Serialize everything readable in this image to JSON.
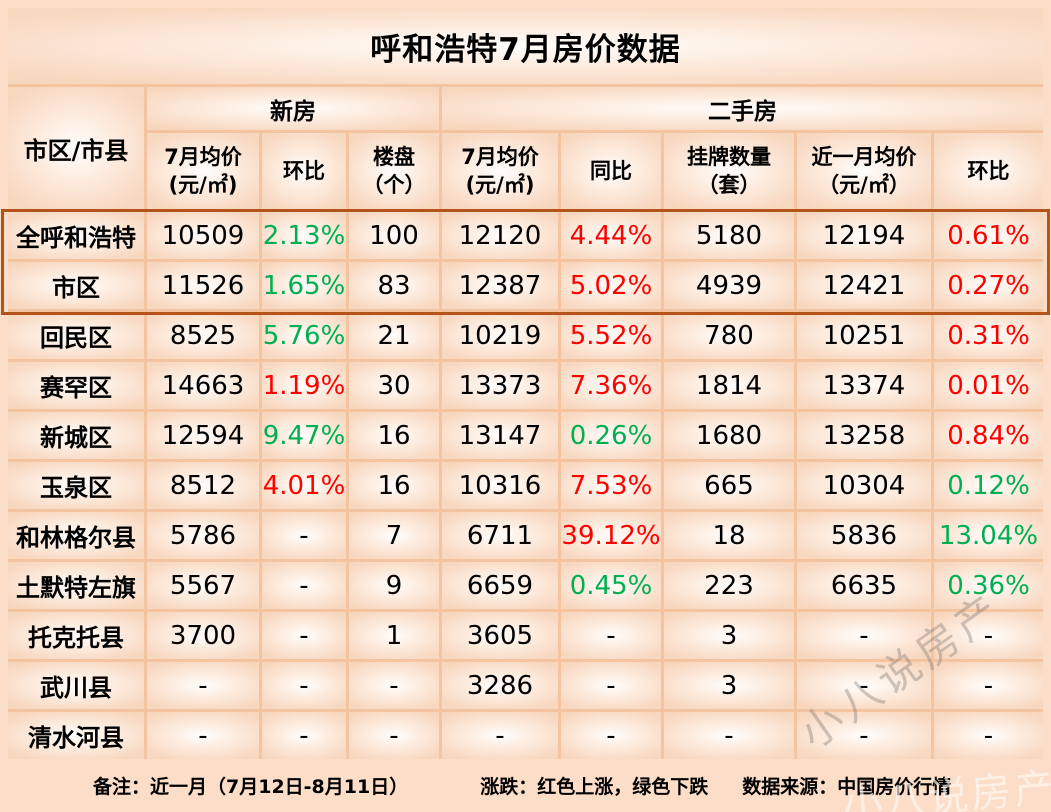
{
  "chart_data": {
    "type": "table",
    "title": "呼和浩特7月房价数据",
    "row_header": "市区/市县",
    "groups": [
      {
        "label": "新房",
        "span": 3
      },
      {
        "label": "二手房",
        "span": 5
      }
    ],
    "columns": [
      "7月均价\n(元/㎡)",
      "环比",
      "楼盘\n（个）",
      "7月均价\n(元/㎡)",
      "同比",
      "挂牌数量\n（套）",
      "近一月均价\n（元/㎡）",
      "环比"
    ],
    "rows": [
      {
        "name": "全呼和浩特",
        "boxed": true,
        "cells": [
          {
            "t": "10509"
          },
          {
            "t": "2.13%",
            "c": "g"
          },
          {
            "t": "100"
          },
          {
            "t": "12120"
          },
          {
            "t": "4.44%",
            "c": "r"
          },
          {
            "t": "5180"
          },
          {
            "t": "12194"
          },
          {
            "t": "0.61%",
            "c": "r"
          }
        ]
      },
      {
        "name": "市区",
        "boxed": true,
        "cells": [
          {
            "t": "11526"
          },
          {
            "t": "1.65%",
            "c": "g"
          },
          {
            "t": "83"
          },
          {
            "t": "12387"
          },
          {
            "t": "5.02%",
            "c": "r"
          },
          {
            "t": "4939"
          },
          {
            "t": "12421"
          },
          {
            "t": "0.27%",
            "c": "r"
          }
        ]
      },
      {
        "name": "回民区",
        "boxed": false,
        "cells": [
          {
            "t": "8525"
          },
          {
            "t": "5.76%",
            "c": "g"
          },
          {
            "t": "21"
          },
          {
            "t": "10219"
          },
          {
            "t": "5.52%",
            "c": "r"
          },
          {
            "t": "780"
          },
          {
            "t": "10251"
          },
          {
            "t": "0.31%",
            "c": "r"
          }
        ]
      },
      {
        "name": "赛罕区",
        "boxed": false,
        "cells": [
          {
            "t": "14663"
          },
          {
            "t": "1.19%",
            "c": "r"
          },
          {
            "t": "30"
          },
          {
            "t": "13373"
          },
          {
            "t": "7.36%",
            "c": "r"
          },
          {
            "t": "1814"
          },
          {
            "t": "13374"
          },
          {
            "t": "0.01%",
            "c": "r"
          }
        ]
      },
      {
        "name": "新城区",
        "boxed": false,
        "cells": [
          {
            "t": "12594"
          },
          {
            "t": "9.47%",
            "c": "g"
          },
          {
            "t": "16"
          },
          {
            "t": "13147"
          },
          {
            "t": "0.26%",
            "c": "g"
          },
          {
            "t": "1680"
          },
          {
            "t": "13258"
          },
          {
            "t": "0.84%",
            "c": "r"
          }
        ]
      },
      {
        "name": "玉泉区",
        "boxed": false,
        "cells": [
          {
            "t": "8512"
          },
          {
            "t": "4.01%",
            "c": "r"
          },
          {
            "t": "16"
          },
          {
            "t": "10316"
          },
          {
            "t": "7.53%",
            "c": "r"
          },
          {
            "t": "665"
          },
          {
            "t": "10304"
          },
          {
            "t": "0.12%",
            "c": "g"
          }
        ]
      },
      {
        "name": "和林格尔县",
        "boxed": false,
        "cells": [
          {
            "t": "5786"
          },
          {
            "t": "-"
          },
          {
            "t": "7"
          },
          {
            "t": "6711"
          },
          {
            "t": "39.12%",
            "c": "r"
          },
          {
            "t": "18"
          },
          {
            "t": "5836"
          },
          {
            "t": "13.04%",
            "c": "g"
          }
        ]
      },
      {
        "name": "土默特左旗",
        "boxed": false,
        "cells": [
          {
            "t": "5567"
          },
          {
            "t": "-"
          },
          {
            "t": "9"
          },
          {
            "t": "6659"
          },
          {
            "t": "0.45%",
            "c": "g"
          },
          {
            "t": "223"
          },
          {
            "t": "6635"
          },
          {
            "t": "0.36%",
            "c": "g"
          }
        ]
      },
      {
        "name": "托克托县",
        "boxed": false,
        "cells": [
          {
            "t": "3700"
          },
          {
            "t": "-"
          },
          {
            "t": "1"
          },
          {
            "t": "3605"
          },
          {
            "t": "-"
          },
          {
            "t": "3"
          },
          {
            "t": "-"
          },
          {
            "t": "-"
          }
        ]
      },
      {
        "name": "武川县",
        "boxed": false,
        "cells": [
          {
            "t": "-"
          },
          {
            "t": "-"
          },
          {
            "t": "-"
          },
          {
            "t": "3286"
          },
          {
            "t": "-"
          },
          {
            "t": "3"
          },
          {
            "t": "-"
          },
          {
            "t": "-"
          }
        ]
      },
      {
        "name": "清水河县",
        "boxed": false,
        "cells": [
          {
            "t": "-"
          },
          {
            "t": "-"
          },
          {
            "t": "-"
          },
          {
            "t": "-"
          },
          {
            "t": "-"
          },
          {
            "t": "-"
          },
          {
            "t": "-"
          },
          {
            "t": "-"
          }
        ]
      }
    ]
  },
  "footer": {
    "note": "备注：近一月（7月12日-8月11日）",
    "legend": "涨跌：红色上涨，绿色下跌",
    "source": "数据来源：中国房价行情"
  },
  "watermark": {
    "text": "小八说房产"
  },
  "colors": {
    "rise_red": "#ff0000",
    "fall_green": "#00b050",
    "accent_border": "#b4541b",
    "grid_line": "#f4c3a0",
    "page_bg": "#fbddc8"
  }
}
